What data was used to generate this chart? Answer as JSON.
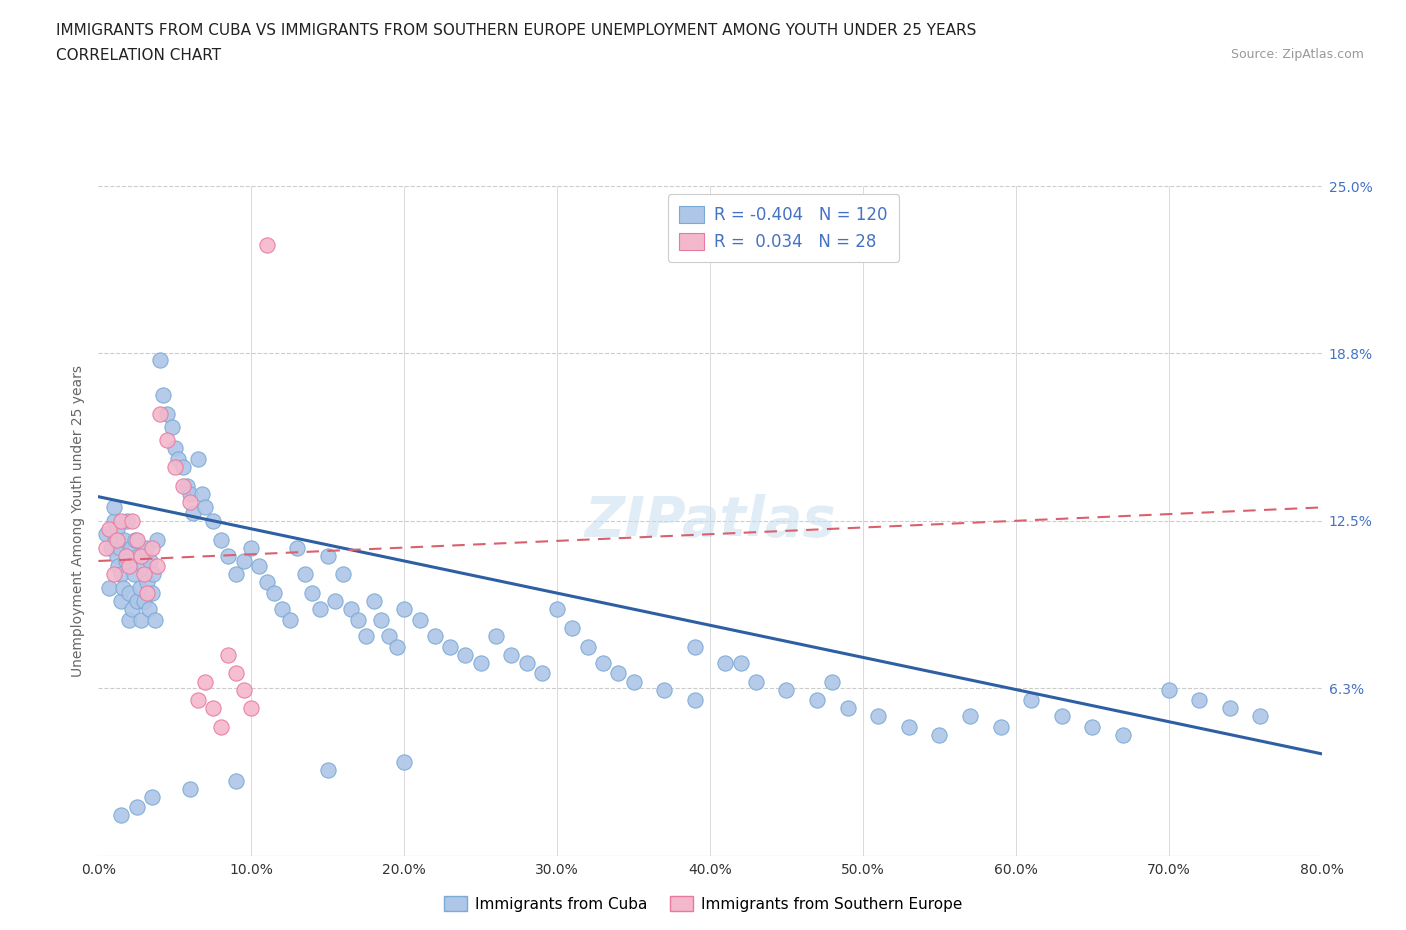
{
  "title_line1": "IMMIGRANTS FROM CUBA VS IMMIGRANTS FROM SOUTHERN EUROPE UNEMPLOYMENT AMONG YOUTH UNDER 25 YEARS",
  "title_line2": "CORRELATION CHART",
  "source_text": "Source: ZipAtlas.com",
  "ylabel": "Unemployment Among Youth under 25 years",
  "xmin": 0.0,
  "xmax": 0.8,
  "ymin": 0.0,
  "ymax": 0.25,
  "cuba_color": "#aec6e8",
  "cuba_edge_color": "#7baad4",
  "se_color": "#f4b8cc",
  "se_edge_color": "#e87aa0",
  "trendline_cuba_color": "#2e5fa3",
  "trendline_se_color": "#d9616e",
  "cuba_R": -0.404,
  "cuba_N": 120,
  "se_R": 0.034,
  "se_N": 28,
  "legend_label_cuba": "Immigrants from Cuba",
  "legend_label_se": "Immigrants from Southern Europe",
  "watermark": "ZIPatlas",
  "background_color": "#ffffff",
  "grid_color": "#cccccc",
  "tick_label_color": "#4472c4",
  "axis_label_color": "#666666",
  "legend_R_color": "#4472c4",
  "cuba_scatter_x": [
    0.005,
    0.007,
    0.008,
    0.01,
    0.01,
    0.011,
    0.012,
    0.012,
    0.013,
    0.014,
    0.015,
    0.015,
    0.016,
    0.017,
    0.018,
    0.019,
    0.02,
    0.02,
    0.021,
    0.022,
    0.023,
    0.024,
    0.025,
    0.026,
    0.027,
    0.028,
    0.029,
    0.03,
    0.031,
    0.032,
    0.033,
    0.034,
    0.035,
    0.036,
    0.037,
    0.038,
    0.04,
    0.042,
    0.045,
    0.048,
    0.05,
    0.052,
    0.055,
    0.058,
    0.06,
    0.062,
    0.065,
    0.068,
    0.07,
    0.075,
    0.08,
    0.085,
    0.09,
    0.095,
    0.1,
    0.105,
    0.11,
    0.115,
    0.12,
    0.125,
    0.13,
    0.135,
    0.14,
    0.145,
    0.15,
    0.155,
    0.16,
    0.165,
    0.17,
    0.175,
    0.18,
    0.185,
    0.19,
    0.195,
    0.2,
    0.21,
    0.22,
    0.23,
    0.24,
    0.25,
    0.26,
    0.27,
    0.28,
    0.29,
    0.3,
    0.31,
    0.32,
    0.33,
    0.34,
    0.35,
    0.37,
    0.39,
    0.41,
    0.43,
    0.45,
    0.47,
    0.49,
    0.51,
    0.53,
    0.55,
    0.57,
    0.59,
    0.61,
    0.63,
    0.65,
    0.67,
    0.7,
    0.72,
    0.74,
    0.76,
    0.39,
    0.42,
    0.48,
    0.2,
    0.15,
    0.09,
    0.06,
    0.035,
    0.025,
    0.015
  ],
  "cuba_scatter_y": [
    0.12,
    0.1,
    0.115,
    0.125,
    0.13,
    0.118,
    0.112,
    0.122,
    0.108,
    0.115,
    0.095,
    0.105,
    0.1,
    0.118,
    0.11,
    0.125,
    0.088,
    0.098,
    0.115,
    0.092,
    0.105,
    0.118,
    0.095,
    0.112,
    0.1,
    0.088,
    0.108,
    0.095,
    0.115,
    0.102,
    0.092,
    0.11,
    0.098,
    0.105,
    0.088,
    0.118,
    0.185,
    0.172,
    0.165,
    0.16,
    0.152,
    0.148,
    0.145,
    0.138,
    0.135,
    0.128,
    0.148,
    0.135,
    0.13,
    0.125,
    0.118,
    0.112,
    0.105,
    0.11,
    0.115,
    0.108,
    0.102,
    0.098,
    0.092,
    0.088,
    0.115,
    0.105,
    0.098,
    0.092,
    0.112,
    0.095,
    0.105,
    0.092,
    0.088,
    0.082,
    0.095,
    0.088,
    0.082,
    0.078,
    0.092,
    0.088,
    0.082,
    0.078,
    0.075,
    0.072,
    0.082,
    0.075,
    0.072,
    0.068,
    0.092,
    0.085,
    0.078,
    0.072,
    0.068,
    0.065,
    0.062,
    0.058,
    0.072,
    0.065,
    0.062,
    0.058,
    0.055,
    0.052,
    0.048,
    0.045,
    0.052,
    0.048,
    0.058,
    0.052,
    0.048,
    0.045,
    0.062,
    0.058,
    0.055,
    0.052,
    0.078,
    0.072,
    0.065,
    0.035,
    0.032,
    0.028,
    0.025,
    0.022,
    0.018,
    0.015
  ],
  "se_scatter_x": [
    0.005,
    0.007,
    0.01,
    0.012,
    0.015,
    0.018,
    0.02,
    0.022,
    0.025,
    0.028,
    0.03,
    0.032,
    0.035,
    0.038,
    0.04,
    0.045,
    0.05,
    0.055,
    0.06,
    0.065,
    0.07,
    0.075,
    0.08,
    0.085,
    0.09,
    0.095,
    0.1,
    0.11
  ],
  "se_scatter_y": [
    0.115,
    0.122,
    0.105,
    0.118,
    0.125,
    0.112,
    0.108,
    0.125,
    0.118,
    0.112,
    0.105,
    0.098,
    0.115,
    0.108,
    0.165,
    0.155,
    0.145,
    0.138,
    0.132,
    0.058,
    0.065,
    0.055,
    0.048,
    0.075,
    0.068,
    0.062,
    0.055,
    0.228
  ],
  "cuba_trendline_x0": 0.0,
  "cuba_trendline_y0": 0.134,
  "cuba_trendline_x1": 0.8,
  "cuba_trendline_y1": 0.038,
  "se_trendline_x0": 0.0,
  "se_trendline_y0": 0.11,
  "se_trendline_x1": 0.8,
  "se_trendline_y1": 0.13
}
